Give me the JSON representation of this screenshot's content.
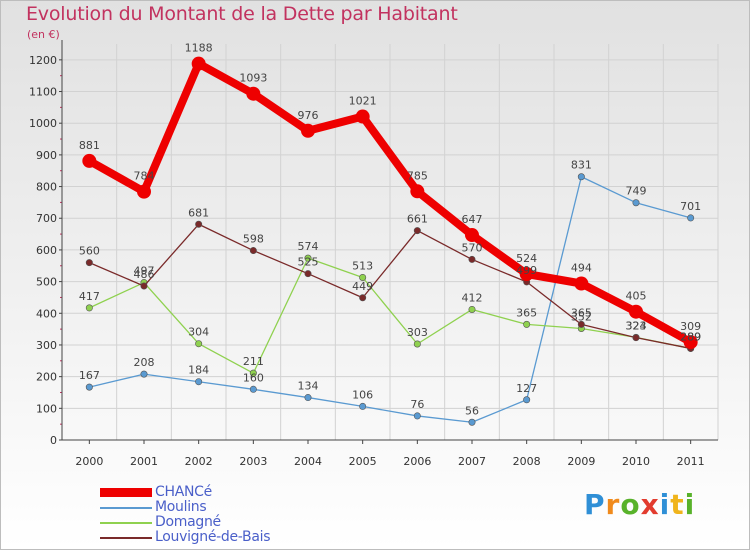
{
  "title": "Evolution du Montant de la Dette par Habitant",
  "subtitle": "(en €)",
  "logo": {
    "text": "Proxiti",
    "letters": [
      {
        "ch": "P",
        "color": "#2f8fd6"
      },
      {
        "ch": "r",
        "color": "#f08a1c"
      },
      {
        "ch": "o",
        "color": "#58b22a"
      },
      {
        "ch": "x",
        "color": "#e23b2e"
      },
      {
        "ch": "i",
        "color": "#2f8fd6"
      },
      {
        "ch": "t",
        "color": "#f0b41c"
      },
      {
        "ch": "i",
        "color": "#58b22a"
      }
    ]
  },
  "chart_data": {
    "type": "line",
    "title": "Evolution du Montant de la Dette par Habitant",
    "ylabel": "(en €)",
    "xlabel": "",
    "x": [
      "2000",
      "2001",
      "2002",
      "2003",
      "2004",
      "2005",
      "2006",
      "2007",
      "2008",
      "2009",
      "2010",
      "2011"
    ],
    "ylim": [
      0,
      1250
    ],
    "yticks": [
      0,
      100,
      200,
      300,
      400,
      500,
      600,
      700,
      800,
      900,
      1000,
      1100,
      1200
    ],
    "grid": true,
    "legend": "bottom-left",
    "series": [
      {
        "name": "Moulins",
        "color": "#5a9ad1",
        "values": [
          167,
          208,
          184,
          160,
          134,
          106,
          76,
          56,
          127,
          831,
          749,
          701
        ]
      },
      {
        "name": "Domagné",
        "color": "#8fd14f",
        "values": [
          417,
          497,
          304,
          211,
          574,
          513,
          303,
          412,
          365,
          352,
          324,
          289
        ]
      },
      {
        "name": "Louvigné-de-Bais",
        "color": "#7a2a2a",
        "values": [
          560,
          486,
          681,
          598,
          525,
          449,
          661,
          570,
          499,
          365,
          323,
          289
        ]
      },
      {
        "name": "CHANCé",
        "color": "#ee0000",
        "values": [
          881,
          784,
          1188,
          1093,
          976,
          1021,
          785,
          647,
          524,
          494,
          405,
          309
        ]
      }
    ]
  },
  "legend_order": [
    3,
    0,
    1,
    2
  ]
}
